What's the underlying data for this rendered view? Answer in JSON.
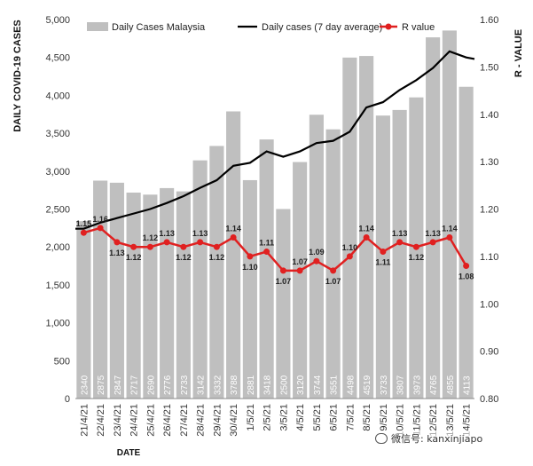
{
  "chart_data": {
    "type": "bar",
    "categories": [
      "21/4/21",
      "22/4/21",
      "23/4/21",
      "24/4/21",
      "25/4/21",
      "26/4/21",
      "27/4/21",
      "28/4/21",
      "29/4/21",
      "30/4/21",
      "1/5/21",
      "2/5/21",
      "3/5/21",
      "4/5/21",
      "5/5/21",
      "6/5/21",
      "7/5/21",
      "8/5/21",
      "9/5/21",
      "10/5/21",
      "11/5/21",
      "12/5/21",
      "13/5/21",
      "14/5/21"
    ],
    "series": [
      {
        "name": "Daily Cases Malaysia",
        "kind": "bar",
        "axis": "left",
        "color": "#bfbfbf",
        "values": [
          2340,
          2875,
          2847,
          2717,
          2690,
          2776,
          2733,
          3142,
          3332,
          3788,
          2881,
          3418,
          2500,
          3120,
          3744,
          3551,
          4498,
          4519,
          3733,
          3807,
          3973,
          4765,
          4855,
          4113
        ]
      },
      {
        "name": "Daily cases (7 day average)",
        "kind": "line",
        "axis": "left",
        "color": "#000000",
        "values": [
          2240,
          2320,
          2380,
          2440,
          2500,
          2580,
          2670,
          2780,
          2880,
          3070,
          3110,
          3260,
          3190,
          3260,
          3370,
          3400,
          3520,
          3840,
          3910,
          4070,
          4200,
          4360,
          4580,
          4500
        ]
      },
      {
        "name": "R value",
        "kind": "line-markers",
        "axis": "right",
        "color": "#e02020",
        "values": [
          1.15,
          1.16,
          1.13,
          1.12,
          1.12,
          1.13,
          1.12,
          1.13,
          1.12,
          1.14,
          1.1,
          1.11,
          1.07,
          1.07,
          1.09,
          1.07,
          1.1,
          1.14,
          1.11,
          1.13,
          1.12,
          1.13,
          1.14,
          1.08
        ],
        "labels": [
          "1.15",
          "1.16",
          "1.13",
          "1.12",
          "1.12",
          "1.13",
          "1.12",
          "1.13",
          "1.12",
          "1.14",
          "1.10",
          "1.11",
          "1.07",
          "1.07",
          "1.09",
          "1.07",
          "1.10",
          "1.14",
          "1.11",
          "1.13",
          "1.12",
          "1.13",
          "1.14",
          "1.08"
        ]
      }
    ],
    "bar_labels": [
      "2340",
      "2875",
      "2847",
      "2717",
      "2690",
      "2776",
      "2733",
      "3142",
      "3332",
      "3788",
      "2881",
      "3418",
      "2500",
      "3120",
      "3744",
      "3551",
      "4498",
      "4519",
      "3733",
      "3807",
      "3973",
      "4765",
      "4855",
      "4113"
    ],
    "xlabel": "DATE",
    "ylabel": "DAILY COVID-19 CASES",
    "ylabel_right": "R - VALUE",
    "ylim": [
      0,
      5000
    ],
    "ylim_right": [
      0.8,
      1.6
    ],
    "yticks": [
      "0",
      "500",
      "1,000",
      "1,500",
      "2,000",
      "2,500",
      "3,000",
      "3,500",
      "4,000",
      "4,500",
      "5,000"
    ],
    "yticks_right": [
      "0.80",
      "0.90",
      "1.00",
      "1.10",
      "1.20",
      "1.30",
      "1.40",
      "1.50",
      "1.60"
    ],
    "legend_position": "top",
    "grid": false
  },
  "watermark": {
    "text": "微信号: kanxinjiapo",
    "icon": "wechat-icon"
  }
}
